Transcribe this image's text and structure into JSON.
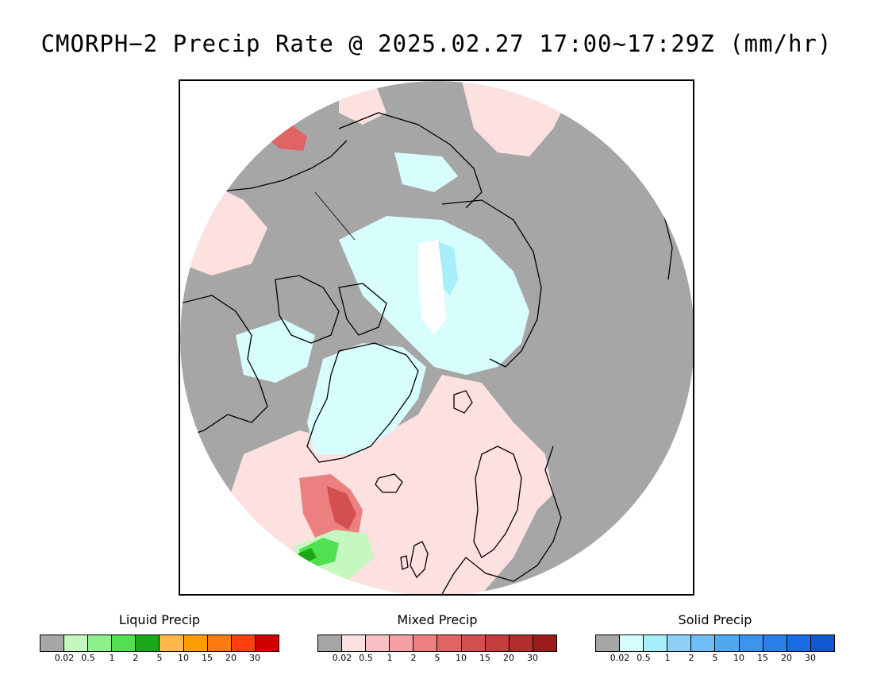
{
  "title": "CMORPH−2 Precip Rate @ 2025.02.27 17:00~17:29Z (mm/hr)",
  "map": {
    "projection": "polar-stereographic-north",
    "colors": {
      "background": "#ffffff",
      "no_precip": "#a6a6a6",
      "coastline": "#000000"
    }
  },
  "legends": [
    {
      "id": "liquid",
      "title": "Liquid Precip",
      "colors": [
        "#a6a6a6",
        "#c7f7c0",
        "#8ef08a",
        "#50e050",
        "#1aa81a",
        "#ffb84a",
        "#ff9d00",
        "#ff7a10",
        "#ff3f10",
        "#d00000"
      ],
      "ticks": [
        "0.02",
        "0.5",
        "1",
        "2",
        "5",
        "10",
        "15",
        "20",
        "30"
      ]
    },
    {
      "id": "mixed",
      "title": "Mixed Precip",
      "colors": [
        "#a6a6a6",
        "#fde0e0",
        "#f9c0c4",
        "#f4a0a4",
        "#ec8080",
        "#e06464",
        "#d45050",
        "#c43e3e",
        "#b42c2c",
        "#9c1c1c"
      ],
      "ticks": [
        "0.02",
        "0.5",
        "1",
        "2",
        "5",
        "10",
        "15",
        "20",
        "30"
      ]
    },
    {
      "id": "solid",
      "title": "Solid Precip",
      "colors": [
        "#a6a6a6",
        "#d8fdfd",
        "#a8eef8",
        "#90d0f8",
        "#70bcf4",
        "#50a8f0",
        "#3c94ec",
        "#2880e8",
        "#186ce4",
        "#1058d0"
      ],
      "ticks": [
        "0.02",
        "0.5",
        "1",
        "2",
        "5",
        "10",
        "15",
        "20",
        "30"
      ]
    }
  ]
}
